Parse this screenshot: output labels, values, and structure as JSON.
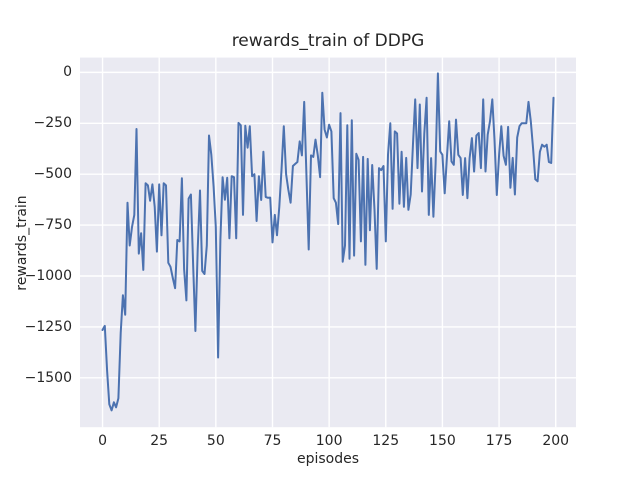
{
  "figure": {
    "title": "rewards_train of DDPG",
    "xlabel": "episodes",
    "ylabel": "rewards_train"
  },
  "chart_data": {
    "type": "line",
    "title": "rewards_train of DDPG",
    "xlabel": "episodes",
    "ylabel": "rewards_train",
    "legend": "none",
    "grid": "on",
    "x_start": 0,
    "x_step": 1,
    "xticks": [
      0,
      25,
      50,
      75,
      100,
      125,
      150,
      175,
      200
    ],
    "yticks": [
      0,
      -250,
      -500,
      -750,
      -1000,
      -1250,
      -1500
    ],
    "xlim": [
      -9.95,
      208.95
    ],
    "ylim": [
      -1742.5,
      72.5
    ],
    "colors": {
      "line": "#4C72B0",
      "plot_background": "#EAEAF2",
      "grid": "#FFFFFF",
      "figure_background": "#FFFFFF",
      "text": "#262626"
    },
    "values": [
      -1265,
      -1245,
      -1465,
      -1630,
      -1660,
      -1620,
      -1645,
      -1600,
      -1280,
      -1095,
      -1190,
      -640,
      -850,
      -760,
      -700,
      -278,
      -890,
      -790,
      -970,
      -545,
      -555,
      -630,
      -550,
      -660,
      -880,
      -550,
      -800,
      -545,
      -555,
      -935,
      -955,
      -1010,
      -1060,
      -823,
      -830,
      -520,
      -965,
      -1120,
      -620,
      -600,
      -955,
      -1270,
      -870,
      -580,
      -975,
      -990,
      -850,
      -310,
      -404,
      -560,
      -760,
      -1400,
      -820,
      -515,
      -626,
      -518,
      -815,
      -510,
      -515,
      -815,
      -248,
      -260,
      -700,
      -262,
      -370,
      -265,
      -510,
      -500,
      -730,
      -510,
      -627,
      -390,
      -612,
      -616,
      -615,
      -835,
      -700,
      -800,
      -660,
      -480,
      -265,
      -500,
      -575,
      -640,
      -460,
      -450,
      -440,
      -339,
      -408,
      -145,
      -515,
      -870,
      -408,
      -415,
      -330,
      -408,
      -515,
      -100,
      -281,
      -320,
      -257,
      -290,
      -618,
      -640,
      -745,
      -200,
      -930,
      -850,
      -260,
      -915,
      -235,
      -900,
      -400,
      -430,
      -830,
      -415,
      -945,
      -425,
      -775,
      -455,
      -675,
      -965,
      -470,
      -480,
      -460,
      -830,
      -405,
      -250,
      -670,
      -290,
      -300,
      -645,
      -390,
      -660,
      -420,
      -675,
      -600,
      -350,
      -133,
      -470,
      -158,
      -585,
      -300,
      -125,
      -700,
      -421,
      -709,
      -450,
      -5,
      -388,
      -405,
      -594,
      -410,
      -240,
      -437,
      -454,
      -232,
      -405,
      -421,
      -602,
      -421,
      -618,
      -421,
      -323,
      -487,
      -310,
      -298,
      -470,
      -133,
      -487,
      -306,
      -240,
      -133,
      -330,
      -602,
      -405,
      -265,
      -410,
      -454,
      -268,
      -567,
      -420,
      -600,
      -320,
      -264,
      -250,
      -250,
      -250,
      -145,
      -240,
      -375,
      -525,
      -535,
      -390,
      -355,
      -365,
      -355,
      -440,
      -445,
      -125
    ]
  }
}
